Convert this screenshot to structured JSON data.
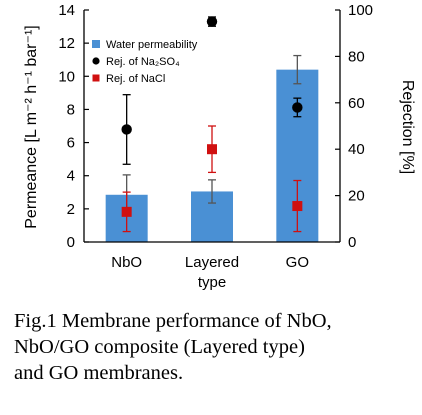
{
  "chart_data": {
    "type": "bar",
    "categories": [
      "NbO",
      "Layered\ntype",
      "GO"
    ],
    "series": [
      {
        "name": "Water permeability",
        "kind": "bar",
        "axis": "left",
        "color": "#4a90d4",
        "values": [
          2.85,
          3.05,
          10.4
        ],
        "error": [
          1.2,
          0.7,
          0.85
        ]
      },
      {
        "name": "Rej. of Na₂SO₄",
        "kind": "point",
        "marker": "circle",
        "axis": "right",
        "color": "#000000",
        "values": [
          48.5,
          95,
          58
        ],
        "error": [
          15,
          2,
          4
        ]
      },
      {
        "name": "Rej. of NaCl",
        "kind": "point",
        "marker": "square",
        "axis": "right",
        "color": "#d01010",
        "values": [
          13,
          40,
          15.5
        ],
        "error": [
          8.5,
          10,
          11
        ]
      }
    ],
    "left_axis": {
      "label": "Permeance [L m⁻² h⁻¹ bar⁻¹]",
      "ylim": [
        0,
        14
      ],
      "ticks": [
        "0",
        "2",
        "4",
        "6",
        "8",
        "10",
        "12",
        "14"
      ]
    },
    "right_axis": {
      "label": "Rejection [%]",
      "ylim": [
        0,
        100
      ],
      "ticks": [
        "0",
        "20",
        "40",
        "60",
        "80",
        "100"
      ]
    },
    "legend": "top-inside",
    "grid": false
  },
  "caption": {
    "line1": "Fig.1 Membrane performance of NbO,",
    "line2": "NbO/GO composite (Layered type)",
    "line3": "and GO membranes."
  }
}
